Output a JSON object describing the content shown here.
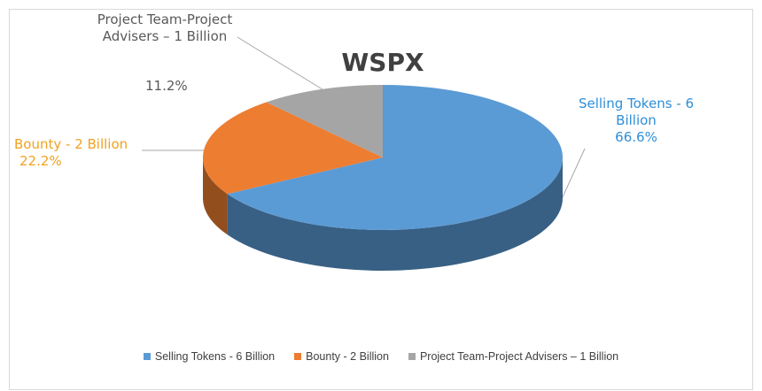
{
  "chart_data": {
    "type": "pie",
    "title": "WSPX",
    "categories": [
      "Selling Tokens - 6 Billion",
      "Bounty - 2 Billion",
      "Project Team-Project Advisers – 1 Billion"
    ],
    "values": [
      66.6,
      22.2,
      11.2
    ],
    "value_labels": [
      "66.6%",
      "22.2%",
      "11.2%"
    ],
    "colors": [
      "#5b9bd5",
      "#ed7d31",
      "#a5a5a5"
    ],
    "label_colors": [
      "#2e8fd8",
      "#f0a21f",
      "#595959"
    ]
  }
}
